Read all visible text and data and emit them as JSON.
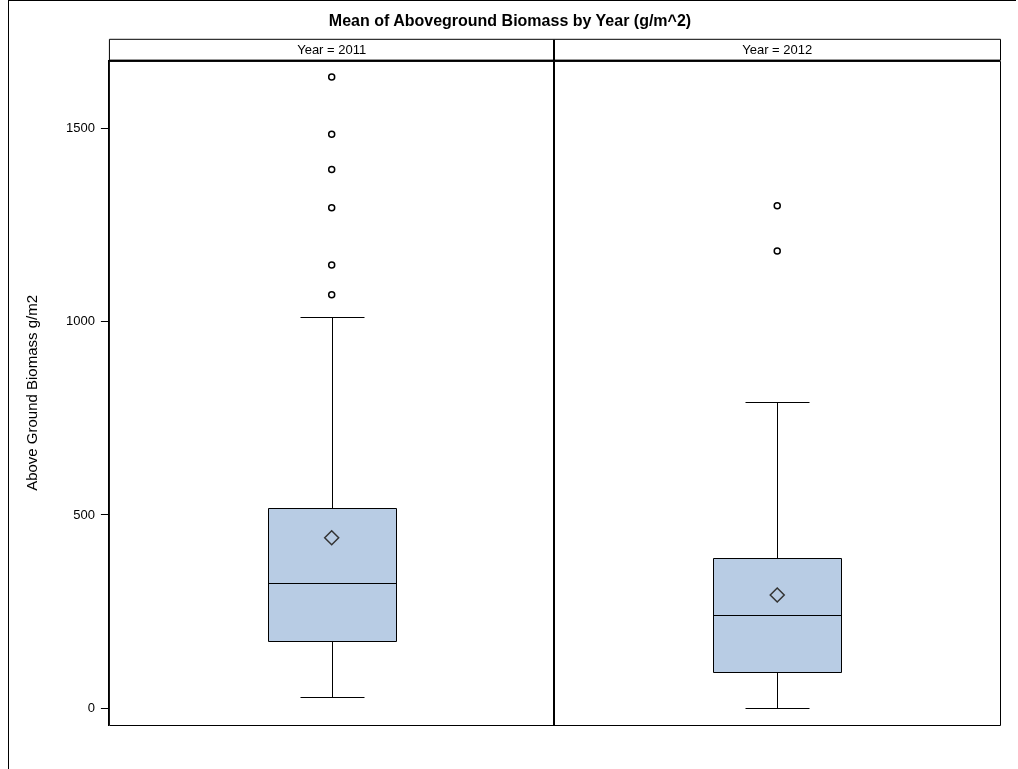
{
  "chart_data": {
    "type": "box",
    "title": "Mean of Aboveground Biomass by Year (g/m^2)",
    "ylabel": "Above Ground Biomass g/m2",
    "categories": [
      "Year = 2011",
      "Year = 2012"
    ],
    "color": "#b8cce4",
    "boxes": [
      {
        "low": 30,
        "q1": 173,
        "median": 324,
        "q3": 518,
        "high": 1012,
        "mean": 441,
        "outliers": [
          1069,
          1146,
          1294,
          1393,
          1484,
          1632
        ]
      },
      {
        "low": 0,
        "q1": 94,
        "median": 242,
        "q3": 389,
        "high": 791,
        "mean": 293,
        "outliers": [
          1182,
          1299
        ]
      }
    ],
    "ylim": [
      -43,
      1674
    ],
    "yticks": [
      0,
      500,
      1000,
      1500
    ],
    "grid": false
  }
}
